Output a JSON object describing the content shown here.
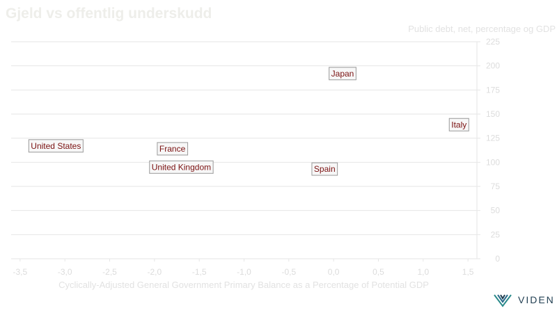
{
  "chart_data": {
    "type": "scatter",
    "title": "Gjeld vs offentlig underskudd",
    "xlabel": "Cyclically-Adjusted General Government Primary Balance as a Percentage of Potential GDP",
    "ylabel": "Public debt, net, percentage og GDP",
    "xlim": [
      -3.6,
      1.6
    ],
    "ylim": [
      0,
      225
    ],
    "x_ticks": [
      "-3,5",
      "-3,0",
      "-2,5",
      "-2,0",
      "-1,5",
      "-1,0",
      "-0,5",
      "0,0",
      "0,5",
      "1,0",
      "1,5"
    ],
    "x_tick_values": [
      -3.5,
      -3.0,
      -2.5,
      -2.0,
      -1.5,
      -1.0,
      -0.5,
      0.0,
      0.5,
      1.0,
      1.5
    ],
    "y_ticks": [
      "0",
      "25",
      "50",
      "75",
      "100",
      "125",
      "150",
      "175",
      "200",
      "225"
    ],
    "y_tick_values": [
      0,
      25,
      50,
      75,
      100,
      125,
      150,
      175,
      200,
      225
    ],
    "grid": true,
    "points": [
      {
        "label": "Japan",
        "x": 0.1,
        "y": 192
      },
      {
        "label": "Italy",
        "x": 1.4,
        "y": 139
      },
      {
        "label": "United States",
        "x": -3.1,
        "y": 117
      },
      {
        "label": "France",
        "x": -1.8,
        "y": 114
      },
      {
        "label": "United Kingdom",
        "x": -1.7,
        "y": 95
      },
      {
        "label": "Spain",
        "x": -0.1,
        "y": 93
      }
    ]
  },
  "logo": {
    "text": "VIDEN"
  },
  "colors": {
    "label_text": "#7a1010",
    "gridline": "#e6e6e6",
    "axis_text": "#dcdcdc"
  }
}
